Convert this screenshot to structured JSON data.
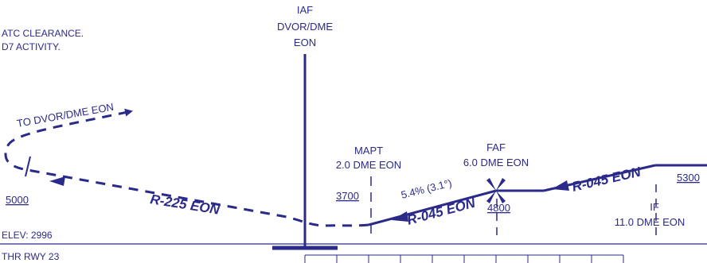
{
  "colors": {
    "ink": "#2b2a8a",
    "background": "#ffffff"
  },
  "notes": {
    "line1": "ATC CLEARANCE.",
    "line2": "D7 ACTIVITY."
  },
  "iaf": {
    "label": "IAF",
    "name": "DVOR/DME",
    "id": "EON"
  },
  "missed_approach": {
    "text": "TO DVOR/DME EON",
    "altitude": "5000"
  },
  "mapt": {
    "label": "MAPT",
    "distance": "2.0 DME EON",
    "altitude": "3700"
  },
  "faf": {
    "label": "FAF",
    "distance": "6.0 DME EON",
    "altitude": "4800"
  },
  "glide": {
    "text": "5.4% (3.1°)"
  },
  "if_fix": {
    "label": "IF",
    "distance": "11.0 DME EON",
    "altitude": "5300"
  },
  "radials": {
    "outbound": "R-225 EON",
    "final": "R-045 EON",
    "intermediate": "R-045 EON"
  },
  "airport": {
    "elevation": "ELEV: 2996",
    "threshold": "THR RWY 23"
  }
}
